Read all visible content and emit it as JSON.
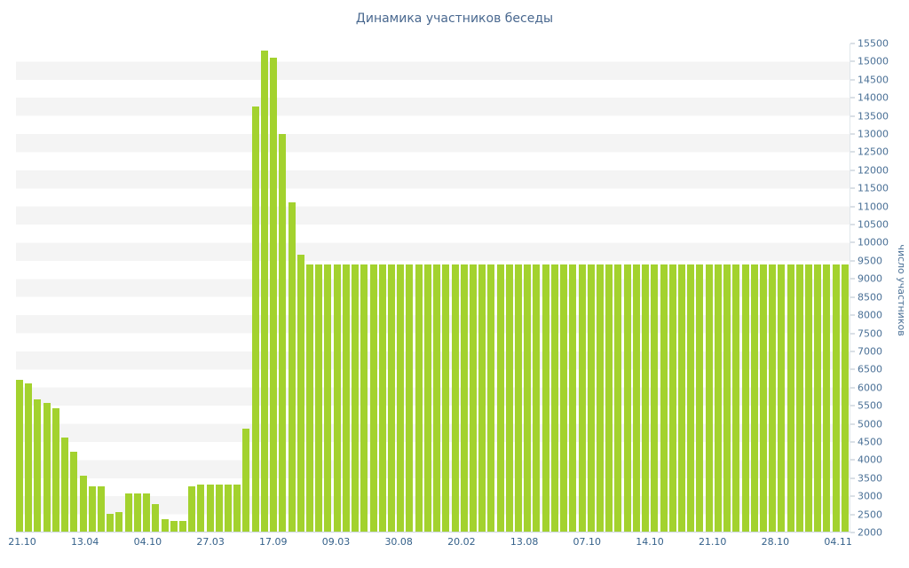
{
  "chart_data": {
    "type": "bar",
    "title": "Динамика участников беседы",
    "xlabel": "",
    "ylabel": "число участников",
    "ylim": [
      2000,
      15500
    ],
    "y_step": 500,
    "grid": "horizontal-stripes",
    "legend": "none",
    "bar_color": "#a3d22e",
    "stripe_colors": [
      "#ffffff",
      "#f4f4f4"
    ],
    "label_color": "#4a7096",
    "title_color": "#49688f",
    "y_ticks": [
      15500,
      15000,
      14500,
      14000,
      13500,
      13000,
      12500,
      12000,
      11500,
      11000,
      10500,
      10000,
      9500,
      9000,
      8500,
      8000,
      7500,
      7000,
      6500,
      6000,
      5500,
      5000,
      4500,
      4000,
      3500,
      3000,
      2500,
      2000
    ],
    "x_tick_labels": [
      "21.10",
      "13.04",
      "04.10",
      "27.03",
      "17.09",
      "09.03",
      "30.08",
      "20.02",
      "13.08",
      "07.10",
      "14.10",
      "21.10",
      "28.10",
      "04.11"
    ],
    "x_label_every_n_bars": 7,
    "values": [
      6200,
      6100,
      5650,
      5550,
      5400,
      4600,
      4200,
      3550,
      3250,
      3250,
      2500,
      2550,
      3050,
      3050,
      3050,
      2750,
      2350,
      2300,
      2300,
      3250,
      3300,
      3300,
      3300,
      3300,
      3300,
      4850,
      13750,
      15300,
      15100,
      13000,
      11100,
      9650,
      9400,
      9400,
      9400,
      9400,
      9400,
      9400,
      9400,
      9400,
      9400,
      9400,
      9400,
      9400,
      9400,
      9400,
      9400,
      9400,
      9400,
      9400,
      9400,
      9400,
      9400,
      9400,
      9400,
      9400,
      9400,
      9400,
      9400,
      9400,
      9400,
      9400,
      9400,
      9400,
      9400,
      9400,
      9400,
      9400,
      9400,
      9400,
      9400,
      9400,
      9400,
      9400,
      9400,
      9400,
      9400,
      9400,
      9400,
      9400,
      9400,
      9400,
      9400,
      9400,
      9400,
      9400,
      9400,
      9400,
      9400,
      9400,
      9400,
      9400
    ]
  }
}
